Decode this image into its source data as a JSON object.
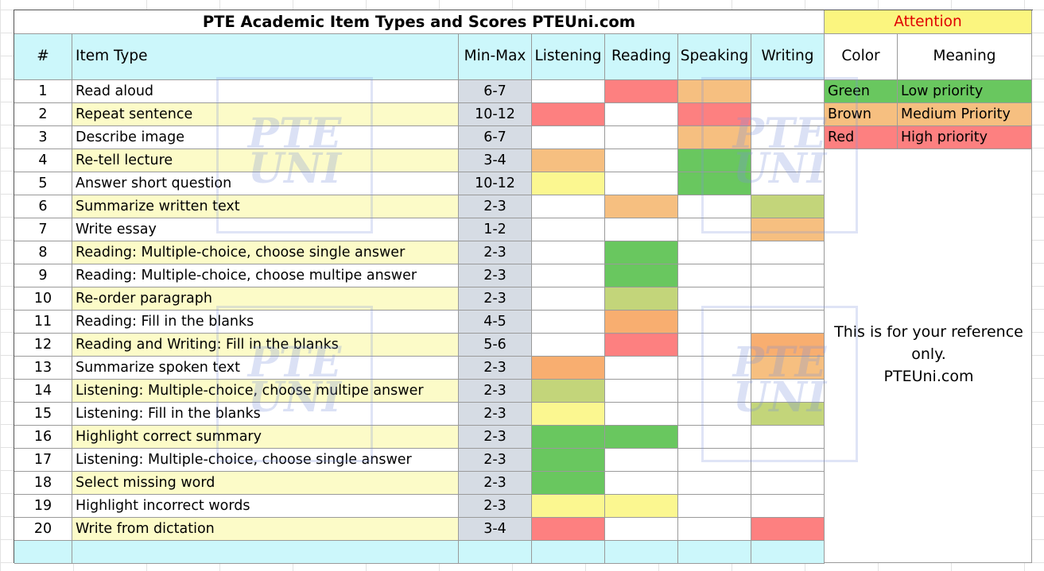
{
  "title": "PTE Academic Item Types and Scores PTEUni.com",
  "attention": "Attention",
  "headers": {
    "num": "#",
    "item_type": "Item Type",
    "min_max": "Min-Max",
    "listening": "Listening",
    "reading": "Reading",
    "speaking": "Speaking",
    "writing": "Writing",
    "color": "Color",
    "meaning": "Meaning"
  },
  "colors": {
    "header_cyan": "#ccf7fb",
    "cream": "#fcfbc8",
    "minmax_gray": "#d6dce4",
    "green": "#69c75f",
    "brown": "#f6bf80",
    "red": "#fd8080",
    "olive": "#c3d57a",
    "orange": "#f8ae70",
    "yellow": "#fbf790",
    "attention_yellow": "#fbf57f"
  },
  "rows": [
    {
      "n": "1",
      "item": "Read aloud",
      "range": "6-7",
      "hl": false,
      "listening": "",
      "reading": "red",
      "speaking": "brown",
      "writing": ""
    },
    {
      "n": "2",
      "item": "Repeat sentence",
      "range": "10-12",
      "hl": true,
      "listening": "red",
      "reading": "",
      "speaking": "red",
      "writing": ""
    },
    {
      "n": "3",
      "item": "Describe image",
      "range": "6-7",
      "hl": false,
      "listening": "",
      "reading": "",
      "speaking": "brown",
      "writing": ""
    },
    {
      "n": "4",
      "item": "Re-tell lecture",
      "range": "3-4",
      "hl": true,
      "listening": "brown",
      "reading": "",
      "speaking": "green",
      "writing": ""
    },
    {
      "n": "5",
      "item": "Answer short question",
      "range": "10-12",
      "hl": false,
      "listening": "yellow",
      "reading": "",
      "speaking": "green",
      "writing": ""
    },
    {
      "n": "6",
      "item": "Summarize written text",
      "range": "2-3",
      "hl": true,
      "listening": "",
      "reading": "brown",
      "speaking": "",
      "writing": "olive"
    },
    {
      "n": "7",
      "item": "Write essay",
      "range": "1-2",
      "hl": false,
      "listening": "",
      "reading": "",
      "speaking": "",
      "writing": "brown"
    },
    {
      "n": "8",
      "item": "Reading: Multiple-choice, choose single answer",
      "range": "2-3",
      "hl": true,
      "listening": "",
      "reading": "green",
      "speaking": "",
      "writing": ""
    },
    {
      "n": "9",
      "item": "Reading: Multiple-choice, choose multipe answer",
      "range": "2-3",
      "hl": false,
      "listening": "",
      "reading": "green",
      "speaking": "",
      "writing": ""
    },
    {
      "n": "10",
      "item": "Re-order paragraph",
      "range": "2-3",
      "hl": true,
      "listening": "",
      "reading": "olive",
      "speaking": "",
      "writing": ""
    },
    {
      "n": "11",
      "item": "Reading: Fill in the blanks",
      "range": "4-5",
      "hl": false,
      "listening": "",
      "reading": "orange",
      "speaking": "",
      "writing": ""
    },
    {
      "n": "12",
      "item": "Reading and Writing: Fill in the blanks",
      "range": "5-6",
      "hl": true,
      "listening": "",
      "reading": "red",
      "speaking": "",
      "writing": "orange"
    },
    {
      "n": "13",
      "item": "Summarize spoken text",
      "range": "2-3",
      "hl": false,
      "listening": "orange",
      "reading": "",
      "speaking": "",
      "writing": "brown"
    },
    {
      "n": "14",
      "item": "Listening: Multiple-choice, choose multipe answer",
      "range": "2-3",
      "hl": true,
      "listening": "olive",
      "reading": "",
      "speaking": "",
      "writing": ""
    },
    {
      "n": "15",
      "item": "Listening: Fill in the blanks",
      "range": "2-3",
      "hl": false,
      "listening": "yellow",
      "reading": "",
      "speaking": "",
      "writing": "olive"
    },
    {
      "n": "16",
      "item": "Highlight correct summary",
      "range": "2-3",
      "hl": true,
      "listening": "green",
      "reading": "green",
      "speaking": "",
      "writing": ""
    },
    {
      "n": "17",
      "item": "Listening: Multiple-choice, choose single answer",
      "range": "2-3",
      "hl": false,
      "listening": "green",
      "reading": "",
      "speaking": "",
      "writing": ""
    },
    {
      "n": "18",
      "item": "Select missing word",
      "range": "2-3",
      "hl": true,
      "listening": "green",
      "reading": "",
      "speaking": "",
      "writing": ""
    },
    {
      "n": "19",
      "item": "Highlight incorrect words",
      "range": "2-3",
      "hl": false,
      "listening": "yellow",
      "reading": "yellow",
      "speaking": "",
      "writing": ""
    },
    {
      "n": "20",
      "item": "Write from dictation",
      "range": "3-4",
      "hl": true,
      "listening": "red",
      "reading": "",
      "speaking": "",
      "writing": "red"
    }
  ],
  "legend": [
    {
      "color_name": "Green",
      "meaning": "Low priority",
      "color": "green"
    },
    {
      "color_name": "Brown",
      "meaning": "Medium Priority",
      "color": "brown"
    },
    {
      "color_name": "Red",
      "meaning": "High priority",
      "color": "red"
    }
  ],
  "note": [
    "This is for your reference",
    "only.",
    "PTEUni.com"
  ],
  "watermark": [
    "PTE",
    "UNI"
  ]
}
